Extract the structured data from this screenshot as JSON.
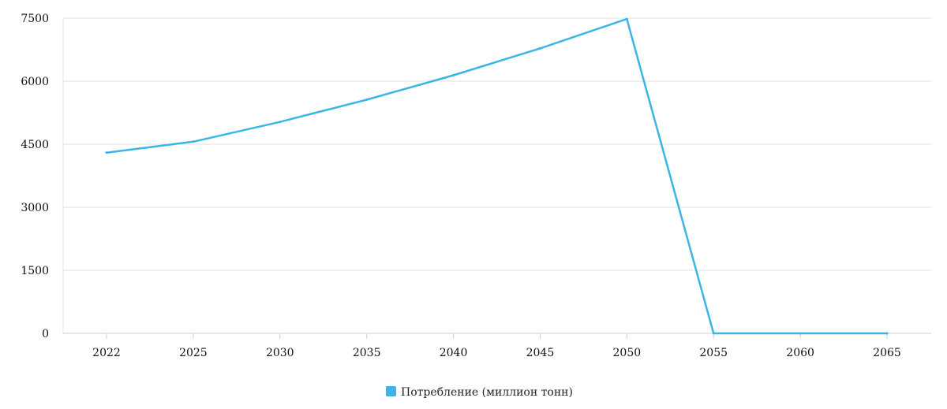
{
  "chart_data": {
    "type": "line",
    "title": "",
    "xlabel": "",
    "ylabel": "",
    "categories": [
      "2022",
      "2025",
      "2030",
      "2035",
      "2040",
      "2045",
      "2050",
      "2055",
      "2060",
      "2065"
    ],
    "ylim": [
      0,
      7500
    ],
    "y_ticks": [
      "0",
      "1500",
      "3000",
      "4500",
      "6000",
      "7500"
    ],
    "grid": "horizontal",
    "legend_position": "bottom-center",
    "series": [
      {
        "name": "Потребление (миллион тонн)",
        "color": "#3bb5e6",
        "values": [
          4300,
          4560,
          5030,
          5560,
          6140,
          6780,
          7480,
          0,
          0,
          0
        ]
      }
    ]
  }
}
